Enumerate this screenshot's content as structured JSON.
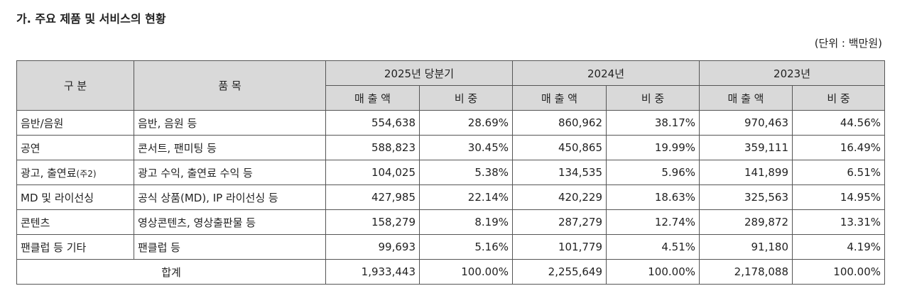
{
  "header": {
    "title": "가. 주요 제품 및 서비스의 현황",
    "unit": "(단위 : 백만원)"
  },
  "table": {
    "columns": {
      "group": "구 분",
      "item": "품 목",
      "periods": [
        "2025년 당분기",
        "2024년",
        "2023년"
      ],
      "sales": "매 출 액",
      "share": "비 중"
    },
    "rows": [
      {
        "category": "음반/음원",
        "item": "음반, 음원 등",
        "cells": [
          "554,638",
          "28.69%",
          "860,962",
          "38.17%",
          "970,463",
          "44.56%"
        ]
      },
      {
        "category": "공연",
        "item": "콘서트, 팬미팅 등",
        "cells": [
          "588,823",
          "30.45%",
          "450,865",
          "19.99%",
          "359,111",
          "16.49%"
        ]
      },
      {
        "category": "광고, 출연료",
        "note": "(주2)",
        "item": "광고 수익, 출연료 수익 등",
        "cells": [
          "104,025",
          "5.38%",
          "134,535",
          "5.96%",
          "141,899",
          "6.51%"
        ]
      },
      {
        "category": "MD 및 라이선싱",
        "item": "공식 상품(MD), IP 라이선싱 등",
        "cells": [
          "427,985",
          "22.14%",
          "420,229",
          "18.63%",
          "325,563",
          "14.95%"
        ]
      },
      {
        "category": "콘텐츠",
        "item": "영상콘텐츠, 영상출판물 등",
        "cells": [
          "158,279",
          "8.19%",
          "287,279",
          "12.74%",
          "289,872",
          "13.31%"
        ]
      },
      {
        "category": "팬클럽 등 기타",
        "item": "팬클럽 등",
        "cells": [
          "99,693",
          "5.16%",
          "101,779",
          "4.51%",
          "91,180",
          "4.19%"
        ]
      }
    ],
    "total": {
      "label": "합계",
      "cells": [
        "1,933,443",
        "100.00%",
        "2,255,649",
        "100.00%",
        "2,178,088",
        "100.00%"
      ]
    }
  }
}
